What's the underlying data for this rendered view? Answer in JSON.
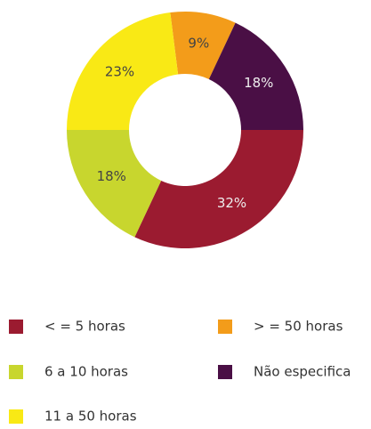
{
  "chart_data": {
    "type": "donut",
    "categories": [
      "> = 50 horas",
      "Não especifica",
      "< = 5 horas",
      "6 a 10 horas",
      "11 a 50 horas"
    ],
    "values": [
      9,
      18,
      32,
      18,
      23
    ],
    "value_labels": [
      "9%",
      "18%",
      "32%",
      "18%",
      "23%"
    ],
    "colors": [
      "#f39c1a",
      "#4a0f45",
      "#9b1b30",
      "#c8d62e",
      "#f9e915"
    ]
  }
}
